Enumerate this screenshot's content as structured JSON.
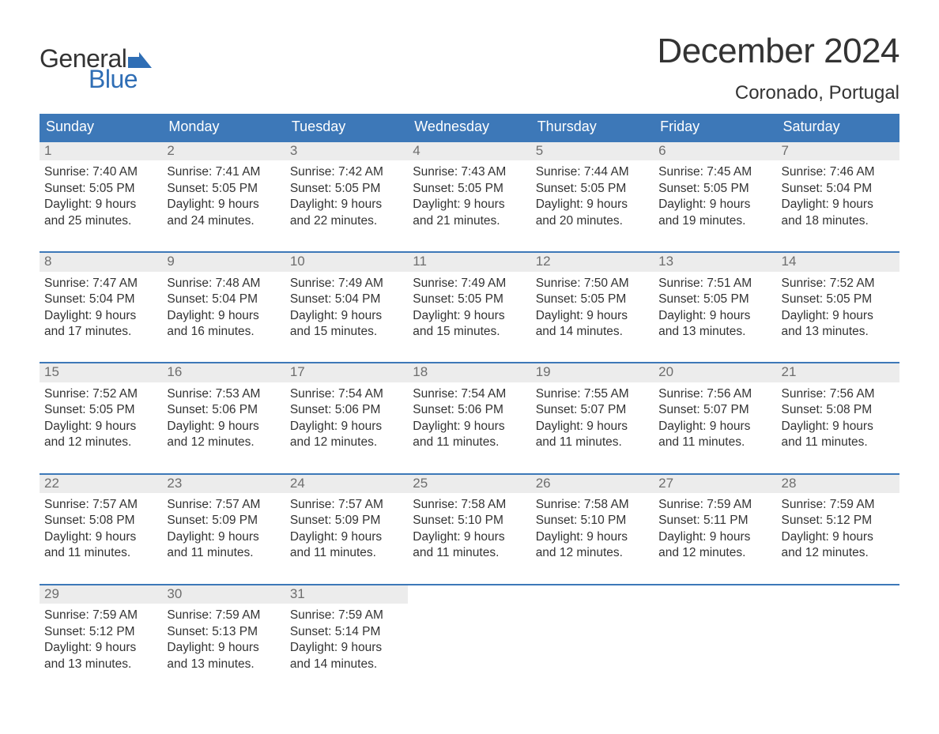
{
  "brand": {
    "word1": "General",
    "word2": "Blue",
    "text_color": "#333333",
    "accent_color": "#2f6eb5",
    "flag_color": "#2f6eb5"
  },
  "title": {
    "month_year": "December 2024",
    "location": "Coronado, Portugal",
    "title_fontsize": 44,
    "location_fontsize": 24
  },
  "calendar": {
    "header_bg": "#3d78b8",
    "header_text_color": "#ffffff",
    "daynum_bg": "#ececec",
    "daynum_color": "#6e6e6e",
    "row_border_color": "#3d78b8",
    "body_text_color": "#333333",
    "background_color": "#ffffff",
    "columns": [
      "Sunday",
      "Monday",
      "Tuesday",
      "Wednesday",
      "Thursday",
      "Friday",
      "Saturday"
    ],
    "labels": {
      "sunrise_prefix": "Sunrise: ",
      "sunset_prefix": "Sunset: ",
      "daylight_prefix": "Daylight: "
    },
    "weeks": [
      [
        {
          "n": "1",
          "sunrise": "7:40 AM",
          "sunset": "5:05 PM",
          "daylight": "9 hours and 25 minutes."
        },
        {
          "n": "2",
          "sunrise": "7:41 AM",
          "sunset": "5:05 PM",
          "daylight": "9 hours and 24 minutes."
        },
        {
          "n": "3",
          "sunrise": "7:42 AM",
          "sunset": "5:05 PM",
          "daylight": "9 hours and 22 minutes."
        },
        {
          "n": "4",
          "sunrise": "7:43 AM",
          "sunset": "5:05 PM",
          "daylight": "9 hours and 21 minutes."
        },
        {
          "n": "5",
          "sunrise": "7:44 AM",
          "sunset": "5:05 PM",
          "daylight": "9 hours and 20 minutes."
        },
        {
          "n": "6",
          "sunrise": "7:45 AM",
          "sunset": "5:05 PM",
          "daylight": "9 hours and 19 minutes."
        },
        {
          "n": "7",
          "sunrise": "7:46 AM",
          "sunset": "5:04 PM",
          "daylight": "9 hours and 18 minutes."
        }
      ],
      [
        {
          "n": "8",
          "sunrise": "7:47 AM",
          "sunset": "5:04 PM",
          "daylight": "9 hours and 17 minutes."
        },
        {
          "n": "9",
          "sunrise": "7:48 AM",
          "sunset": "5:04 PM",
          "daylight": "9 hours and 16 minutes."
        },
        {
          "n": "10",
          "sunrise": "7:49 AM",
          "sunset": "5:04 PM",
          "daylight": "9 hours and 15 minutes."
        },
        {
          "n": "11",
          "sunrise": "7:49 AM",
          "sunset": "5:05 PM",
          "daylight": "9 hours and 15 minutes."
        },
        {
          "n": "12",
          "sunrise": "7:50 AM",
          "sunset": "5:05 PM",
          "daylight": "9 hours and 14 minutes."
        },
        {
          "n": "13",
          "sunrise": "7:51 AM",
          "sunset": "5:05 PM",
          "daylight": "9 hours and 13 minutes."
        },
        {
          "n": "14",
          "sunrise": "7:52 AM",
          "sunset": "5:05 PM",
          "daylight": "9 hours and 13 minutes."
        }
      ],
      [
        {
          "n": "15",
          "sunrise": "7:52 AM",
          "sunset": "5:05 PM",
          "daylight": "9 hours and 12 minutes."
        },
        {
          "n": "16",
          "sunrise": "7:53 AM",
          "sunset": "5:06 PM",
          "daylight": "9 hours and 12 minutes."
        },
        {
          "n": "17",
          "sunrise": "7:54 AM",
          "sunset": "5:06 PM",
          "daylight": "9 hours and 12 minutes."
        },
        {
          "n": "18",
          "sunrise": "7:54 AM",
          "sunset": "5:06 PM",
          "daylight": "9 hours and 11 minutes."
        },
        {
          "n": "19",
          "sunrise": "7:55 AM",
          "sunset": "5:07 PM",
          "daylight": "9 hours and 11 minutes."
        },
        {
          "n": "20",
          "sunrise": "7:56 AM",
          "sunset": "5:07 PM",
          "daylight": "9 hours and 11 minutes."
        },
        {
          "n": "21",
          "sunrise": "7:56 AM",
          "sunset": "5:08 PM",
          "daylight": "9 hours and 11 minutes."
        }
      ],
      [
        {
          "n": "22",
          "sunrise": "7:57 AM",
          "sunset": "5:08 PM",
          "daylight": "9 hours and 11 minutes."
        },
        {
          "n": "23",
          "sunrise": "7:57 AM",
          "sunset": "5:09 PM",
          "daylight": "9 hours and 11 minutes."
        },
        {
          "n": "24",
          "sunrise": "7:57 AM",
          "sunset": "5:09 PM",
          "daylight": "9 hours and 11 minutes."
        },
        {
          "n": "25",
          "sunrise": "7:58 AM",
          "sunset": "5:10 PM",
          "daylight": "9 hours and 11 minutes."
        },
        {
          "n": "26",
          "sunrise": "7:58 AM",
          "sunset": "5:10 PM",
          "daylight": "9 hours and 12 minutes."
        },
        {
          "n": "27",
          "sunrise": "7:59 AM",
          "sunset": "5:11 PM",
          "daylight": "9 hours and 12 minutes."
        },
        {
          "n": "28",
          "sunrise": "7:59 AM",
          "sunset": "5:12 PM",
          "daylight": "9 hours and 12 minutes."
        }
      ],
      [
        {
          "n": "29",
          "sunrise": "7:59 AM",
          "sunset": "5:12 PM",
          "daylight": "9 hours and 13 minutes."
        },
        {
          "n": "30",
          "sunrise": "7:59 AM",
          "sunset": "5:13 PM",
          "daylight": "9 hours and 13 minutes."
        },
        {
          "n": "31",
          "sunrise": "7:59 AM",
          "sunset": "5:14 PM",
          "daylight": "9 hours and 14 minutes."
        },
        null,
        null,
        null,
        null
      ]
    ]
  }
}
